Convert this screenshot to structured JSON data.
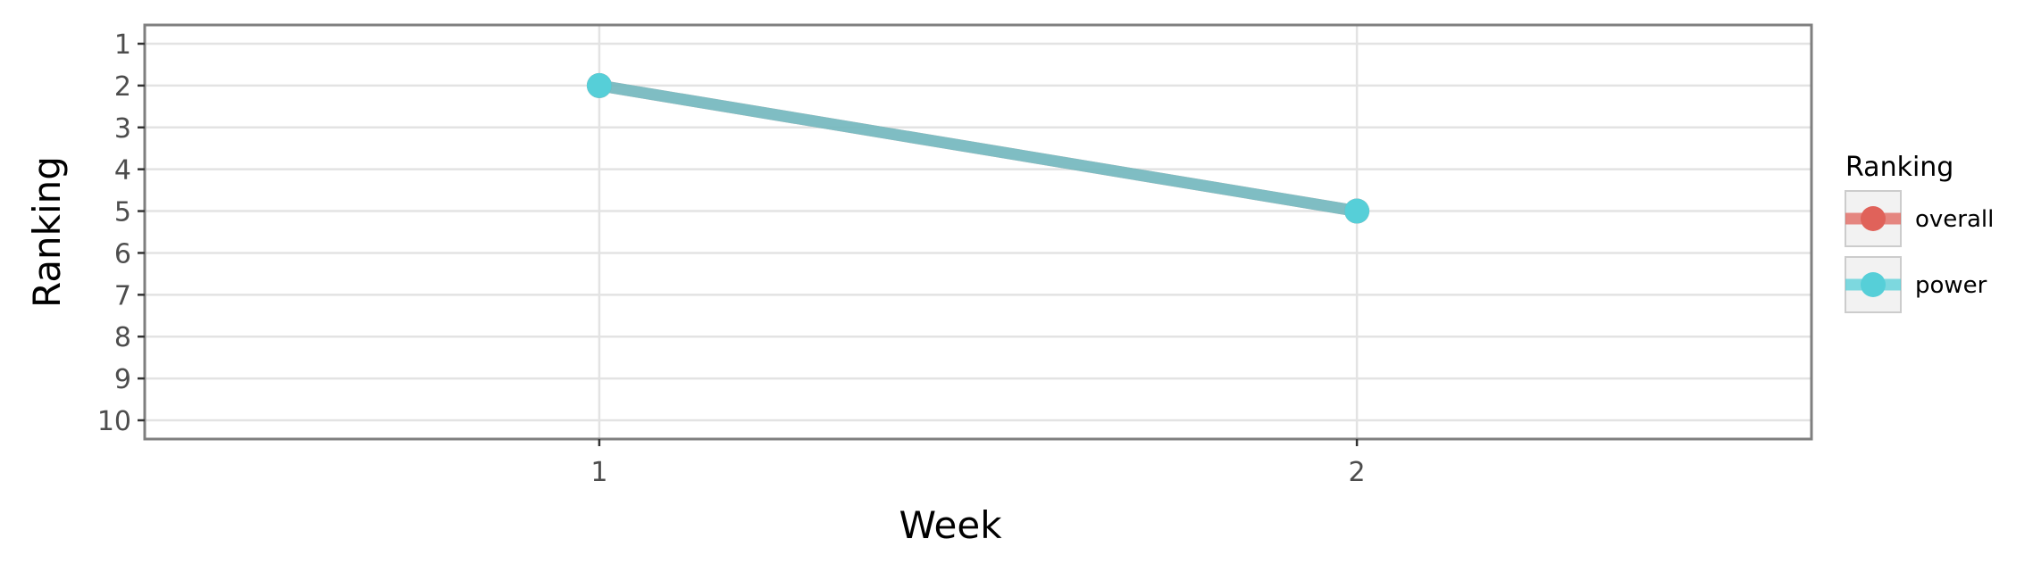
{
  "chart_data": {
    "type": "line",
    "x": [
      1,
      2
    ],
    "x_ticks": [
      1,
      2
    ],
    "x_tick_labels": [
      "1",
      "2"
    ],
    "y_ticks": [
      1,
      2,
      3,
      4,
      5,
      6,
      7,
      8,
      9,
      10
    ],
    "y_tick_labels": [
      "1",
      "2",
      "3",
      "4",
      "5",
      "6",
      "7",
      "8",
      "9",
      "10"
    ],
    "xlim": [
      0.4,
      2.6
    ],
    "ylim": [
      1,
      10
    ],
    "y_reversed": true,
    "xlabel": "Week",
    "ylabel": "Ranking",
    "legend_title": "Ranking",
    "legend_position": "right",
    "series": [
      {
        "name": "overall",
        "values": [
          2,
          5
        ],
        "color": "#e0625a",
        "line_style": "dashed"
      },
      {
        "name": "power",
        "values": [
          2,
          5
        ],
        "color": "#56cfd8",
        "line_style": "solid"
      }
    ]
  }
}
